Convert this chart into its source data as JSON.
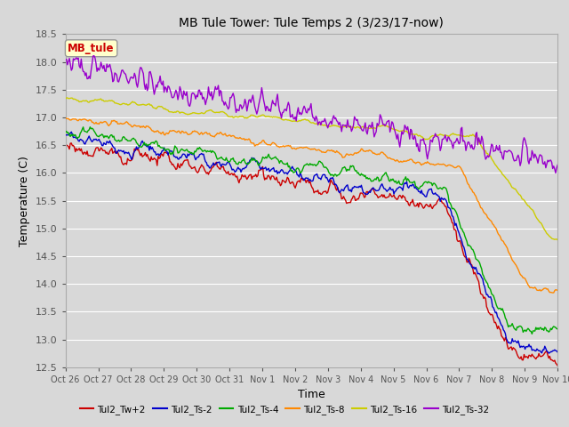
{
  "title": "MB Tule Tower: Tule Temps 2 (3/23/17-now)",
  "xlabel": "Time",
  "ylabel": "Temperature (C)",
  "ylim": [
    12.5,
    18.5
  ],
  "yticks": [
    12.5,
    13.0,
    13.5,
    14.0,
    14.5,
    15.0,
    15.5,
    16.0,
    16.5,
    17.0,
    17.5,
    18.0,
    18.5
  ],
  "xtick_labels": [
    "Oct 26",
    "Oct 27",
    "Oct 28",
    "Oct 29",
    "Oct 30",
    "Oct 31",
    "Nov 1",
    "Nov 2",
    "Nov 3",
    "Nov 4",
    "Nov 5",
    "Nov 6",
    "Nov 7",
    "Nov 8",
    "Nov 9",
    "Nov 10"
  ],
  "background_color": "#d8d8d8",
  "plot_bg_color": "#d8d8d8",
  "grid_color": "#ffffff",
  "series": [
    {
      "name": "Tul2_Tw+2",
      "color": "#cc0000"
    },
    {
      "name": "Tul2_Ts-2",
      "color": "#0000cc"
    },
    {
      "name": "Tul2_Ts-4",
      "color": "#00aa00"
    },
    {
      "name": "Tul2_Ts-8",
      "color": "#ff8800"
    },
    {
      "name": "Tul2_Ts-16",
      "color": "#cccc00"
    },
    {
      "name": "Tul2_Ts-32",
      "color": "#9900cc"
    }
  ],
  "annotation_box": {
    "text": "MB_tule",
    "color": "#cc0000",
    "bg": "#ffffcc",
    "border": "#999999"
  },
  "n_points": 500
}
